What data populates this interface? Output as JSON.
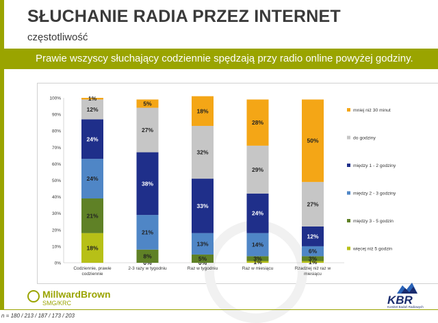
{
  "header": {
    "title": "SŁUCHANIE RADIA PRZEZ INTERNET",
    "subtitle": "częstotliwość"
  },
  "banner": {
    "text": "Prawie wszyscy słuchający codziennie spędzają przy radio online powyżej godziny."
  },
  "footnote": "n = 180 / 213 / 187 / 173 / 203",
  "logos": {
    "left_name": "MillwardBrown",
    "left_sub": "SMG/KRC",
    "right_name": "KBR",
    "right_sub": "Komitet Badań Radiowych"
  },
  "colors": {
    "accent": "#9aa400"
  },
  "chart_data": {
    "type": "bar",
    "stacked": true,
    "percent_stacked": true,
    "categories": [
      "Codziennie, prawie codziennie",
      "2-3 razy w tygodniu",
      "Raz w tygodniu",
      "Raz w miesiącu",
      "Rzadziej niż raz w miesiącu"
    ],
    "category_lines": [
      [
        "Codziennie, prawie",
        "codziennie"
      ],
      [
        "2-3 razy w tygodniu"
      ],
      [
        "Raz w tygodniu"
      ],
      [
        "Raz w miesiącu"
      ],
      [
        "Rzadziej niż raz w",
        "miesiącu"
      ]
    ],
    "ylim": [
      0,
      100
    ],
    "yticks": [
      0,
      10,
      20,
      30,
      40,
      50,
      60,
      70,
      80,
      90,
      100
    ],
    "ytick_suffix": "%",
    "legend_position": "right",
    "series": [
      {
        "name": "więcej niż 5 godzin",
        "color": "#b7c017",
        "label_color": "#222222",
        "values": [
          18,
          0,
          0,
          1,
          1
        ],
        "labels": [
          "18%",
          "0%",
          "0%",
          "1%",
          "1%"
        ]
      },
      {
        "name": "między 3 - 5 godzin",
        "color": "#5f8126",
        "label_color": "#222222",
        "values": [
          21,
          8,
          5,
          3,
          3
        ],
        "labels": [
          "21%",
          "8%",
          "5%",
          "3%",
          "3%"
        ]
      },
      {
        "name": "między 2 - 3 godziny",
        "color": "#4f86c6",
        "label_color": "#222222",
        "values": [
          24,
          21,
          13,
          14,
          6
        ],
        "labels": [
          "24%",
          "21%",
          "13%",
          "14%",
          "6%"
        ]
      },
      {
        "name": "między 1 - 2 godziny",
        "color": "#1f2f8a",
        "label_color": "#ffffff",
        "values": [
          24,
          38,
          33,
          24,
          12
        ],
        "labels": [
          "24%",
          "38%",
          "33%",
          "24%",
          "12%"
        ]
      },
      {
        "name": "do godziny",
        "color": "#c6c6c6",
        "label_color": "#222222",
        "values": [
          12,
          27,
          32,
          29,
          27
        ],
        "labels": [
          "12%",
          "27%",
          "32%",
          "29%",
          "27%"
        ]
      },
      {
        "name": "mniej niż 30 minut",
        "color": "#f4a616",
        "label_color": "#222222",
        "values": [
          1,
          5,
          18,
          28,
          50
        ],
        "labels": [
          "1%",
          "5%",
          "18%",
          "28%",
          "50%"
        ]
      }
    ]
  }
}
